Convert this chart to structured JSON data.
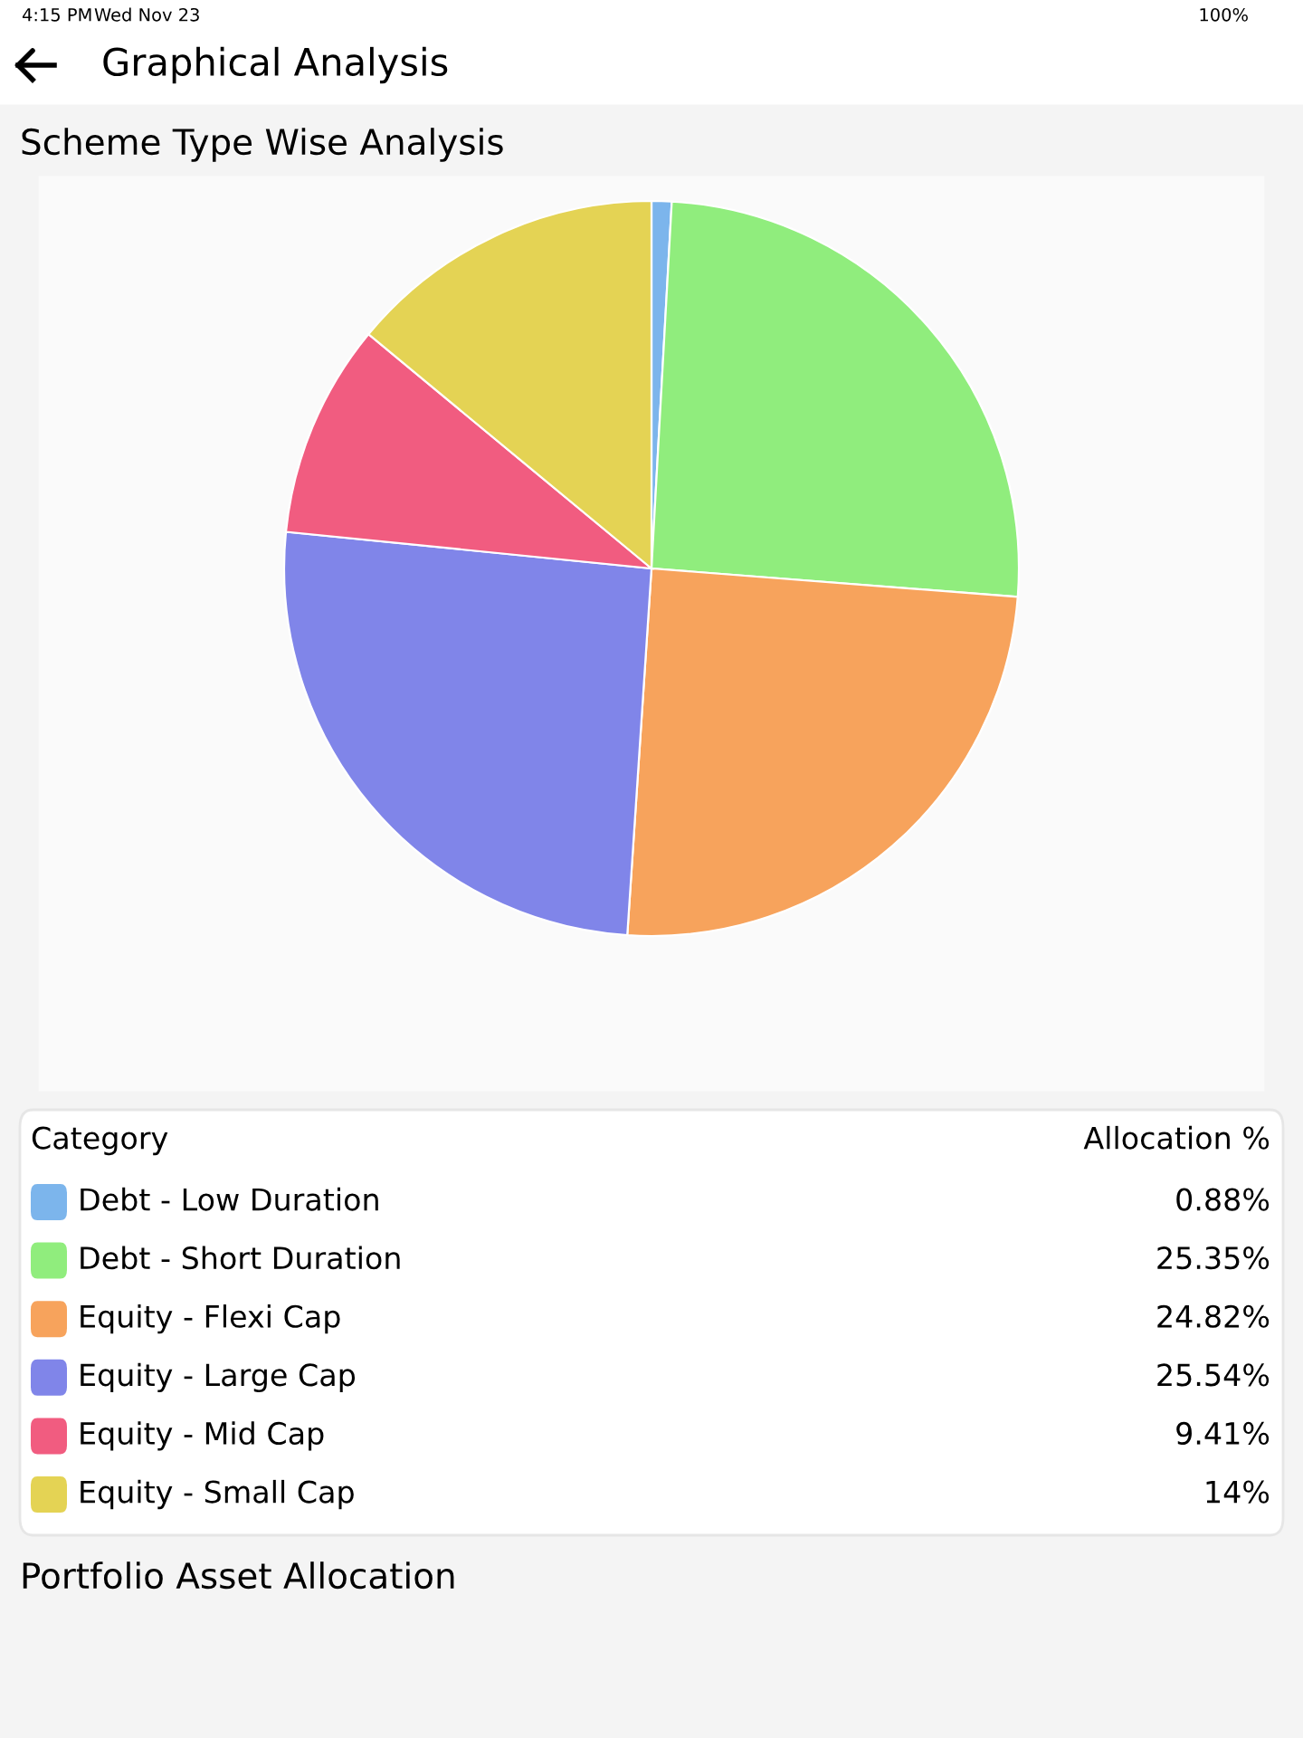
{
  "chart_data": {
    "type": "pie",
    "title": "Scheme Type Wise Analysis",
    "categories": [
      "Debt - Low Duration",
      "Debt - Short Duration",
      "Equity - Flexi Cap",
      "Equity - Large Cap",
      "Equity - Mid Cap",
      "Equity - Small Cap"
    ],
    "values": [
      0.88,
      25.35,
      24.82,
      25.54,
      9.41,
      14
    ],
    "colors": [
      "#7cb5ec",
      "#90ed7d",
      "#f7a35c",
      "#8085e9",
      "#f15c80",
      "#e4d354"
    ],
    "value_labels": [
      "0.88%",
      "25.35%",
      "24.82%",
      "25.54%",
      "9.41%",
      "14%"
    ],
    "legend": "bottom",
    "legend_title": "Category",
    "annotations": [
      "Allocation %",
      "Graphical Analysis",
      "Portfolio Asset Allocation",
      "4:15 PM",
      "Wed Nov 23",
      "100%"
    ]
  }
}
